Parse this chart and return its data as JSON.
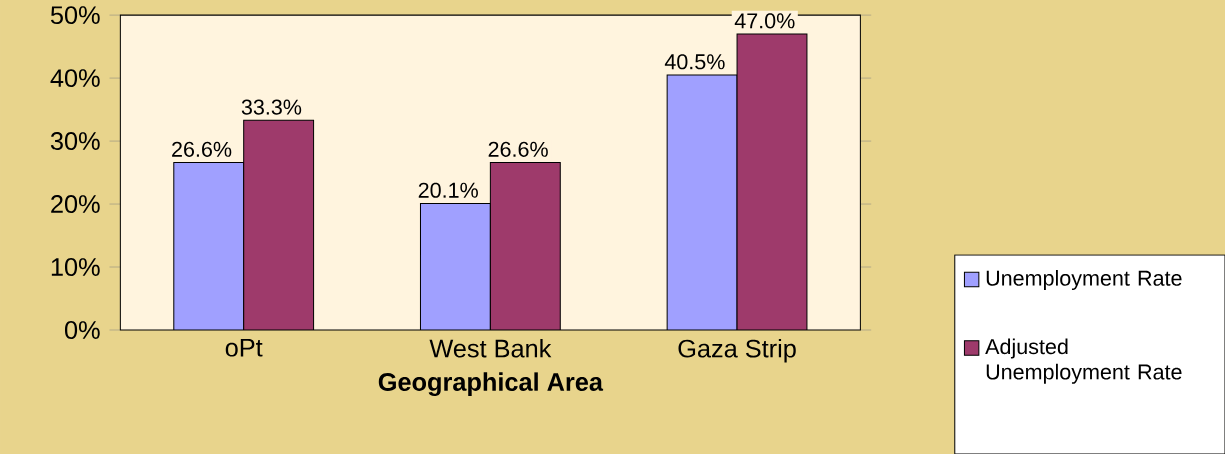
{
  "chart_data": {
    "type": "bar",
    "xlabel": "Geographical Area",
    "categories": [
      "oPt",
      "West Bank",
      "Gaza Strip"
    ],
    "series": [
      {
        "name": "Unemployment Rate",
        "color": "#a0a0ff",
        "values": [
          26.6,
          20.1,
          40.5
        ],
        "value_labels": [
          "26.6%",
          "20.1%",
          "40.5%"
        ]
      },
      {
        "name": "Adjusted Unemployment Rate",
        "color": "#9e3a6b",
        "values": [
          33.3,
          26.6,
          47.0
        ],
        "value_labels": [
          "33.3%",
          "26.6%",
          "47.0%"
        ]
      }
    ],
    "ylim": [
      0,
      50
    ],
    "yticks": [
      {
        "value": 0,
        "label": "0%"
      },
      {
        "value": 10,
        "label": "10%"
      },
      {
        "value": 20,
        "label": "20%"
      },
      {
        "value": 30,
        "label": "30%"
      },
      {
        "value": 40,
        "label": "40%"
      },
      {
        "value": 50,
        "label": "50%"
      }
    ],
    "grid": false,
    "legend": "bottom right"
  }
}
